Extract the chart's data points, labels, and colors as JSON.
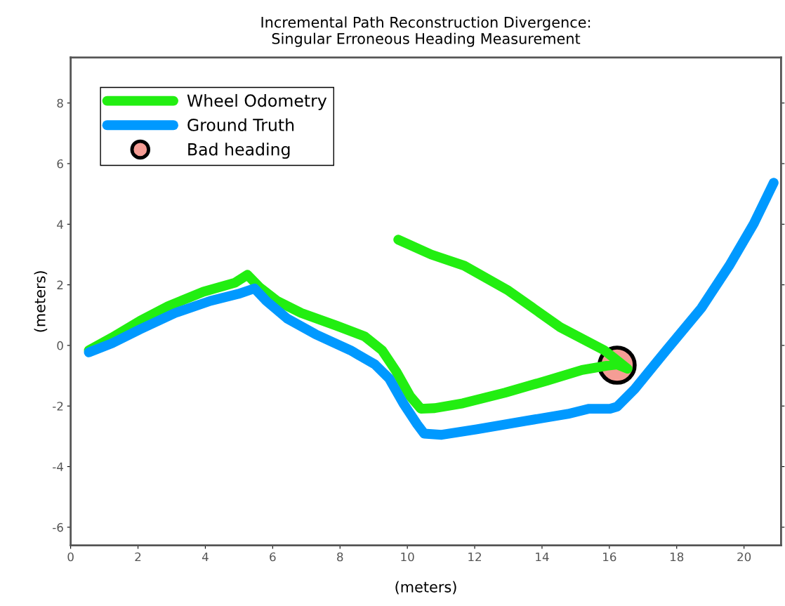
{
  "chart_data": {
    "type": "line",
    "title": "Incremental Path Reconstruction Divergence:\nSingular Erroneous Heading Measurement",
    "xlabel": "(meters)",
    "ylabel": "(meters)",
    "xlim": [
      0,
      21.1
    ],
    "ylim": [
      -6.6,
      9.5
    ],
    "xticks": [
      0,
      2,
      4,
      6,
      8,
      10,
      12,
      14,
      16,
      18,
      20
    ],
    "yticks": [
      -6,
      -4,
      -2,
      0,
      2,
      4,
      6,
      8
    ],
    "grid": false,
    "legend": "top left",
    "line_style": "solid",
    "series": [
      {
        "name": "Wheel Odometry",
        "color": "#22ee11",
        "x": [
          0.54,
          1.23,
          2.06,
          2.9,
          3.94,
          4.88,
          5.25,
          5.6,
          6.13,
          6.85,
          7.9,
          8.73,
          9.25,
          9.67,
          10.08,
          10.4,
          10.81,
          11.65,
          12.9,
          14.15,
          15.19,
          15.92,
          16.23,
          16.54,
          15.85,
          14.54,
          13.0,
          11.69,
          10.71,
          9.73
        ],
        "values": [
          -0.16,
          0.26,
          0.81,
          1.3,
          1.77,
          2.07,
          2.33,
          1.93,
          1.47,
          1.07,
          0.65,
          0.3,
          -0.16,
          -0.86,
          -1.67,
          -2.09,
          -2.07,
          -1.91,
          -1.56,
          -1.16,
          -0.81,
          -0.67,
          -0.63,
          -0.77,
          -0.16,
          0.6,
          1.81,
          2.63,
          3.0,
          3.49
        ]
      },
      {
        "name": "Ground Truth",
        "color": "#0099ff",
        "x": [
          0.54,
          1.23,
          2.06,
          3.1,
          4.15,
          4.98,
          5.46,
          5.81,
          6.44,
          7.27,
          8.31,
          9.04,
          9.46,
          9.88,
          10.29,
          10.5,
          11.02,
          12.06,
          13.52,
          14.77,
          15.4,
          16.02,
          16.23,
          16.75,
          17.69,
          18.73,
          19.56,
          20.29,
          20.88
        ],
        "values": [
          -0.23,
          0.07,
          0.53,
          1.07,
          1.47,
          1.7,
          1.88,
          1.47,
          0.88,
          0.37,
          -0.16,
          -0.63,
          -1.09,
          -1.91,
          -2.6,
          -2.91,
          -2.95,
          -2.77,
          -2.49,
          -2.26,
          -2.09,
          -2.09,
          -2.02,
          -1.44,
          -0.16,
          1.23,
          2.63,
          4.02,
          5.37
        ]
      },
      {
        "name": "Bad heading",
        "color": "#f59d95",
        "type": "scatter",
        "marker": "circle",
        "x": [
          16.23
        ],
        "values": [
          -0.65
        ]
      }
    ]
  }
}
